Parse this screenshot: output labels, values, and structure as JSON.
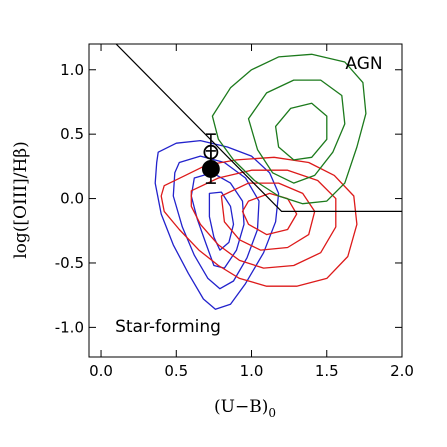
{
  "chart_data": {
    "type": "scatter",
    "xlabel": "(U−B)",
    "xlabel_sub": "0",
    "ylabel": "log([OIII]/Hβ)",
    "xlim": [
      -0.08,
      2.0
    ],
    "ylim": [
      -1.23,
      1.2
    ],
    "x_ticks": [
      0.0,
      0.5,
      1.0,
      1.5,
      2.0
    ],
    "x_tick_labels": [
      "0.0",
      "0.5",
      "1.0",
      "1.5",
      "2.0"
    ],
    "y_ticks": [
      -1.0,
      -0.5,
      0.0,
      0.5,
      1.0
    ],
    "y_tick_labels": [
      "-1.0",
      "-0.5",
      "0.0",
      "0.5",
      "1.0"
    ],
    "grid": false,
    "annotations": [
      {
        "text": "AGN",
        "x": 1.58,
        "y": 1.04
      },
      {
        "text": "Star-forming",
        "x": 0.42,
        "y": -0.98
      }
    ],
    "dividing_line": [
      [
        0.1,
        1.2
      ],
      [
        1.2,
        -0.1
      ],
      [
        2.0,
        -0.1
      ]
    ],
    "colors": {
      "blue": "#2222cc",
      "red": "#dd1a1a",
      "green": "#1c7a1c"
    },
    "series": [
      {
        "color": "blue",
        "type": "contour",
        "contours": [
          [
            [
              0.38,
              0.36
            ],
            [
              0.5,
              0.43
            ],
            [
              0.66,
              0.45
            ],
            [
              0.84,
              0.4
            ],
            [
              1.0,
              0.33
            ],
            [
              1.12,
              0.2
            ],
            [
              1.18,
              0.04
            ],
            [
              1.16,
              -0.18
            ],
            [
              1.08,
              -0.42
            ],
            [
              0.96,
              -0.66
            ],
            [
              0.86,
              -0.82
            ],
            [
              0.76,
              -0.86
            ],
            [
              0.68,
              -0.78
            ],
            [
              0.58,
              -0.58
            ],
            [
              0.48,
              -0.36
            ],
            [
              0.4,
              -0.12
            ],
            [
              0.36,
              0.12
            ],
            [
              0.37,
              0.28
            ]
          ],
          [
            [
              0.52,
              0.28
            ],
            [
              0.66,
              0.33
            ],
            [
              0.82,
              0.28
            ],
            [
              0.96,
              0.16
            ],
            [
              1.05,
              -0.02
            ],
            [
              1.04,
              -0.24
            ],
            [
              0.97,
              -0.46
            ],
            [
              0.88,
              -0.64
            ],
            [
              0.79,
              -0.7
            ],
            [
              0.71,
              -0.62
            ],
            [
              0.62,
              -0.44
            ],
            [
              0.54,
              -0.22
            ],
            [
              0.48,
              0.02
            ],
            [
              0.49,
              0.2
            ]
          ],
          [
            [
              0.62,
              0.16
            ],
            [
              0.74,
              0.2
            ],
            [
              0.86,
              0.12
            ],
            [
              0.94,
              -0.02
            ],
            [
              0.95,
              -0.2
            ],
            [
              0.9,
              -0.4
            ],
            [
              0.82,
              -0.54
            ],
            [
              0.75,
              -0.52
            ],
            [
              0.7,
              -0.36
            ],
            [
              0.64,
              -0.16
            ],
            [
              0.6,
              0.02
            ]
          ],
          [
            [
              0.72,
              0.04
            ],
            [
              0.8,
              0.05
            ],
            [
              0.86,
              -0.06
            ],
            [
              0.88,
              -0.2
            ],
            [
              0.85,
              -0.34
            ],
            [
              0.79,
              -0.4
            ],
            [
              0.75,
              -0.3
            ],
            [
              0.72,
              -0.14
            ]
          ]
        ]
      },
      {
        "color": "red",
        "type": "contour",
        "contours": [
          [
            [
              0.42,
              0.1
            ],
            [
              0.56,
              0.18
            ],
            [
              0.7,
              0.26
            ],
            [
              0.9,
              0.3
            ],
            [
              1.15,
              0.32
            ],
            [
              1.38,
              0.28
            ],
            [
              1.55,
              0.18
            ],
            [
              1.68,
              0.02
            ],
            [
              1.7,
              -0.2
            ],
            [
              1.64,
              -0.45
            ],
            [
              1.5,
              -0.62
            ],
            [
              1.3,
              -0.68
            ],
            [
              1.1,
              -0.68
            ],
            [
              0.92,
              -0.62
            ],
            [
              0.78,
              -0.52
            ],
            [
              0.65,
              -0.4
            ],
            [
              0.52,
              -0.24
            ],
            [
              0.42,
              -0.1
            ],
            [
              0.4,
              0.02
            ]
          ],
          [
            [
              0.6,
              0.06
            ],
            [
              0.78,
              0.16
            ],
            [
              1.0,
              0.22
            ],
            [
              1.24,
              0.22
            ],
            [
              1.44,
              0.14
            ],
            [
              1.56,
              0.0
            ],
            [
              1.56,
              -0.22
            ],
            [
              1.46,
              -0.42
            ],
            [
              1.28,
              -0.52
            ],
            [
              1.08,
              -0.54
            ],
            [
              0.92,
              -0.48
            ],
            [
              0.78,
              -0.36
            ],
            [
              0.66,
              -0.2
            ],
            [
              0.6,
              -0.06
            ]
          ],
          [
            [
              0.8,
              0.02
            ],
            [
              0.98,
              0.12
            ],
            [
              1.18,
              0.12
            ],
            [
              1.34,
              0.04
            ],
            [
              1.42,
              -0.1
            ],
            [
              1.38,
              -0.28
            ],
            [
              1.24,
              -0.38
            ],
            [
              1.06,
              -0.4
            ],
            [
              0.92,
              -0.32
            ],
            [
              0.82,
              -0.18
            ]
          ],
          [
            [
              0.98,
              -0.02
            ],
            [
              1.12,
              0.04
            ],
            [
              1.24,
              0.0
            ],
            [
              1.3,
              -0.12
            ],
            [
              1.24,
              -0.24
            ],
            [
              1.1,
              -0.28
            ],
            [
              0.98,
              -0.2
            ],
            [
              0.94,
              -0.1
            ]
          ]
        ]
      },
      {
        "color": "green",
        "type": "contour",
        "contours": [
          [
            [
              0.74,
              0.64
            ],
            [
              0.86,
              0.86
            ],
            [
              1.0,
              1.0
            ],
            [
              1.18,
              1.1
            ],
            [
              1.4,
              1.12
            ],
            [
              1.62,
              1.06
            ],
            [
              1.74,
              0.9
            ],
            [
              1.76,
              0.66
            ],
            [
              1.7,
              0.4
            ],
            [
              1.62,
              0.12
            ],
            [
              1.5,
              -0.02
            ],
            [
              1.34,
              -0.04
            ],
            [
              1.18,
              0.02
            ],
            [
              1.02,
              0.14
            ],
            [
              0.88,
              0.3
            ],
            [
              0.78,
              0.46
            ]
          ],
          [
            [
              0.98,
              0.62
            ],
            [
              1.1,
              0.82
            ],
            [
              1.28,
              0.92
            ],
            [
              1.46,
              0.92
            ],
            [
              1.6,
              0.8
            ],
            [
              1.62,
              0.58
            ],
            [
              1.54,
              0.36
            ],
            [
              1.42,
              0.18
            ],
            [
              1.28,
              0.12
            ],
            [
              1.14,
              0.2
            ],
            [
              1.04,
              0.38
            ]
          ],
          [
            [
              1.16,
              0.56
            ],
            [
              1.26,
              0.7
            ],
            [
              1.4,
              0.74
            ],
            [
              1.5,
              0.64
            ],
            [
              1.5,
              0.46
            ],
            [
              1.4,
              0.32
            ],
            [
              1.28,
              0.3
            ],
            [
              1.18,
              0.4
            ]
          ]
        ]
      }
    ],
    "points": [
      {
        "marker": "open-circle",
        "x": 0.73,
        "y": 0.36,
        "y_err": [
          0.22,
          0.5
        ]
      },
      {
        "marker": "filled-circle",
        "x": 0.73,
        "y": 0.23,
        "y_err": [
          0.12,
          0.37
        ]
      }
    ]
  }
}
